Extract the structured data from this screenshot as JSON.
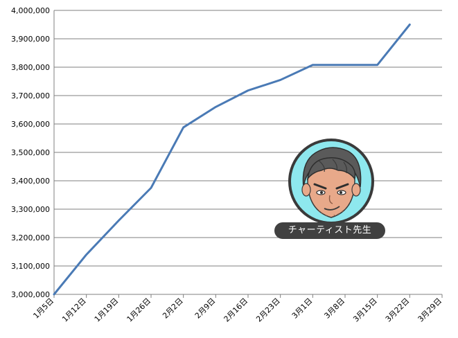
{
  "chart_data": {
    "type": "line",
    "categories": [
      "1月5日",
      "1月12日",
      "1月19日",
      "1月26日",
      "2月2日",
      "2月9日",
      "2月16日",
      "2月23日",
      "3月1日",
      "3月8日",
      "3月15日",
      "3月22日",
      "3月29日"
    ],
    "series": [
      {
        "values": [
          3000000,
          3140000,
          3260000,
          3375000,
          3588000,
          3660000,
          3718000,
          3755000,
          3808000,
          3808000,
          3808000,
          3950000,
          null
        ]
      }
    ],
    "ylim": [
      3000000,
      4000000
    ],
    "yticks": [
      "3,000,000",
      "3,100,000",
      "3,200,000",
      "3,300,000",
      "3,400,000",
      "3,500,000",
      "3,600,000",
      "3,700,000",
      "3,800,000",
      "3,900,000",
      "4,000,000"
    ],
    "grid": true,
    "colors": {
      "series": "#4a7ab5",
      "grid": "#7f7f7f"
    }
  },
  "avatar": {
    "label": "チャーティスト先生",
    "icon": "teacher-avatar-icon",
    "colors": {
      "ring": "#8ee8ee",
      "border": "#3a3a3a",
      "skin": "#e8a98a",
      "hair": "#5a5a5a"
    }
  }
}
